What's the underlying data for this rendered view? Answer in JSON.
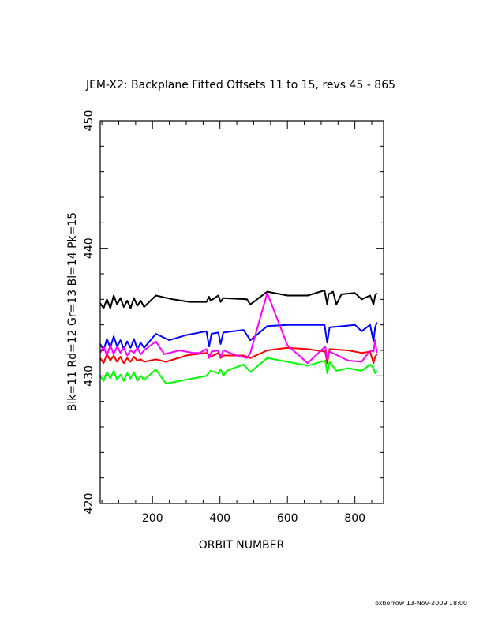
{
  "chart_data": {
    "type": "line",
    "title": "JEM-X2: Backplane Fitted Offsets 11 to 15, revs 45 - 865",
    "xlabel": "ORBIT NUMBER",
    "ylabel": "Blk=11 Rd=12 Gr=13 Bl=14 Pk=15",
    "xlim": [
      45,
      885
    ],
    "ylim": [
      420,
      450
    ],
    "x_ticks": [
      200,
      400,
      600,
      800
    ],
    "y_ticks": [
      420,
      430,
      440,
      450
    ],
    "grid": false,
    "series": [
      {
        "color": "#000000",
        "x": [
          45,
          55,
          65,
          75,
          85,
          95,
          105,
          115,
          125,
          135,
          145,
          155,
          165,
          175,
          210,
          260,
          310,
          360,
          368,
          372,
          395,
          402,
          410,
          480,
          490,
          540,
          600,
          660,
          710,
          718,
          722,
          735,
          745,
          760,
          800,
          820,
          845,
          855,
          860,
          865
        ],
        "values": [
          435.7,
          435.3,
          436.0,
          435.3,
          436.3,
          435.6,
          436.1,
          435.4,
          435.9,
          435.3,
          436.1,
          435.5,
          435.9,
          435.4,
          436.3,
          436.0,
          435.8,
          435.8,
          436.2,
          435.9,
          436.3,
          435.8,
          436.1,
          436.0,
          435.6,
          436.6,
          436.3,
          436.3,
          436.7,
          435.6,
          436.4,
          436.6,
          435.6,
          436.4,
          436.5,
          436.0,
          436.3,
          435.6,
          436.3,
          436.5
        ]
      },
      {
        "color": "#ff0000",
        "x": [
          45,
          55,
          65,
          75,
          85,
          95,
          105,
          115,
          125,
          135,
          145,
          155,
          165,
          175,
          210,
          240,
          300,
          360,
          372,
          395,
          402,
          410,
          470,
          490,
          540,
          600,
          660,
          712,
          718,
          725,
          780,
          820,
          845,
          855,
          860,
          865
        ],
        "values": [
          431.4,
          431.0,
          431.7,
          431.2,
          431.6,
          431.1,
          431.5,
          431.0,
          431.4,
          431.1,
          431.5,
          431.2,
          431.3,
          431.1,
          431.3,
          431.1,
          431.6,
          431.8,
          431.5,
          431.8,
          431.4,
          431.6,
          431.6,
          431.4,
          432.0,
          432.2,
          432.1,
          431.9,
          431.0,
          432.1,
          432.0,
          431.8,
          431.9,
          431.0,
          431.5,
          431.7
        ]
      },
      {
        "color": "#00ff00",
        "x": [
          45,
          55,
          65,
          75,
          85,
          95,
          105,
          115,
          125,
          135,
          145,
          155,
          165,
          175,
          210,
          240,
          300,
          360,
          372,
          395,
          402,
          410,
          420,
          470,
          490,
          540,
          600,
          660,
          712,
          718,
          725,
          745,
          780,
          820,
          845,
          855,
          860,
          865
        ],
        "values": [
          430.0,
          429.6,
          430.3,
          429.8,
          430.4,
          429.7,
          430.1,
          429.6,
          430.2,
          429.8,
          430.3,
          429.6,
          430.0,
          429.7,
          430.5,
          429.4,
          429.7,
          430.0,
          430.4,
          430.2,
          430.5,
          430.0,
          430.4,
          430.9,
          430.3,
          431.4,
          431.1,
          430.8,
          431.2,
          430.2,
          431.1,
          430.4,
          430.6,
          430.4,
          430.9,
          430.6,
          430.2,
          430.4
        ]
      },
      {
        "color": "#0000ff",
        "x": [
          45,
          55,
          65,
          75,
          85,
          95,
          105,
          115,
          125,
          135,
          145,
          155,
          165,
          175,
          210,
          250,
          300,
          360,
          368,
          375,
          395,
          402,
          410,
          470,
          490,
          540,
          600,
          660,
          710,
          718,
          725,
          800,
          820,
          845,
          855,
          860,
          865
        ],
        "values": [
          432.5,
          432.0,
          432.9,
          432.2,
          433.1,
          432.3,
          432.8,
          432.1,
          432.7,
          432.2,
          432.9,
          432.1,
          432.6,
          432.2,
          433.3,
          432.8,
          433.2,
          433.5,
          432.3,
          433.3,
          433.4,
          432.5,
          433.4,
          433.6,
          432.8,
          433.9,
          434.0,
          434.0,
          434.0,
          432.6,
          433.8,
          434.0,
          433.5,
          434.0,
          432.7,
          433.8,
          434.2
        ]
      },
      {
        "color": "#ff00ff",
        "x": [
          45,
          55,
          65,
          75,
          85,
          95,
          105,
          115,
          125,
          135,
          145,
          155,
          165,
          175,
          210,
          235,
          280,
          320,
          340,
          360,
          368,
          375,
          395,
          402,
          410,
          450,
          480,
          490,
          540,
          600,
          660,
          712,
          718,
          725,
          780,
          820,
          845,
          855,
          860,
          865
        ],
        "values": [
          431.8,
          432.3,
          431.6,
          432.4,
          431.7,
          432.3,
          431.8,
          432.2,
          431.6,
          432.0,
          431.8,
          432.2,
          431.7,
          432.0,
          432.7,
          431.7,
          432.0,
          431.8,
          431.8,
          432.1,
          431.4,
          431.9,
          432.0,
          431.5,
          432.0,
          431.6,
          431.4,
          431.8,
          436.5,
          432.4,
          431.0,
          432.3,
          431.3,
          431.9,
          431.2,
          431.1,
          432.0,
          431.9,
          432.8,
          431.8
        ]
      }
    ]
  },
  "footer": "oxborrow 13-Nov-2009 18:00"
}
